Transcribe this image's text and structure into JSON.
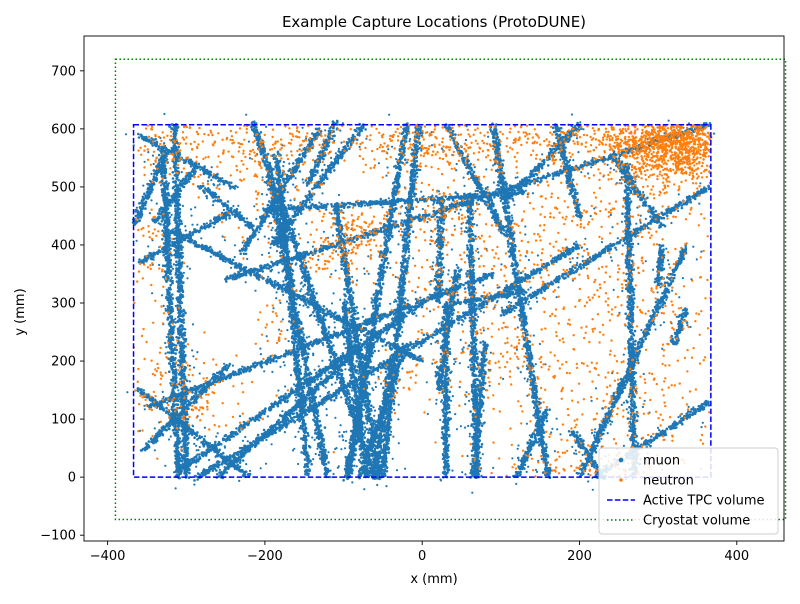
{
  "chart_data": {
    "type": "scatter",
    "title": "Example Capture Locations (ProtoDUNE)",
    "xlabel": "x (mm)",
    "ylabel": "y (mm)",
    "xlim": [
      -430,
      460
    ],
    "ylim": [
      -110,
      760
    ],
    "xticks": [
      -400,
      -200,
      0,
      200,
      400
    ],
    "xtick_labels": [
      "−400",
      "−200",
      "0",
      "200",
      "400"
    ],
    "yticks": [
      -100,
      0,
      100,
      200,
      300,
      400,
      500,
      600,
      700
    ],
    "ytick_labels": [
      "−100",
      "0",
      "100",
      "200",
      "300",
      "400",
      "500",
      "600",
      "700"
    ],
    "grid": false,
    "legend_position": "lower-right",
    "colors": {
      "muon": "#1f77b4",
      "neutron": "#ff7f0e",
      "tpc": "#0000ff",
      "cryostat": "#008000"
    },
    "series": [
      {
        "name": "muon",
        "kind": "scatter",
        "color": "#1f77b4",
        "tracks": [
          [
            [
              -315,
              607
            ],
            [
              -300,
              0
            ]
          ],
          [
            [
              -330,
              565
            ],
            [
              -310,
              0
            ]
          ],
          [
            [
              -360,
              150
            ],
            [
              -220,
              0
            ]
          ],
          [
            [
              -355,
              45
            ],
            [
              -245,
              195
            ]
          ],
          [
            [
              -360,
              370
            ],
            [
              -245,
              455
            ]
          ],
          [
            [
              -215,
              430
            ],
            [
              -280,
              500
            ]
          ],
          [
            [
              -185,
              560
            ],
            [
              -145,
              5
            ]
          ],
          [
            [
              -195,
              520
            ],
            [
              -120,
              0
            ]
          ],
          [
            [
              -215,
              610
            ],
            [
              -60,
              0
            ]
          ],
          [
            [
              -230,
              385
            ],
            [
              -130,
              600
            ]
          ],
          [
            [
              -75,
              607
            ],
            [
              -190,
              400
            ]
          ],
          [
            [
              -110,
              610
            ],
            [
              -145,
              505
            ]
          ],
          [
            [
              -240,
              500
            ],
            [
              -360,
              590
            ]
          ],
          [
            [
              -95,
              0
            ],
            [
              -20,
              607
            ]
          ],
          [
            [
              -55,
              0
            ],
            [
              -110,
              470
            ]
          ],
          [
            [
              -5,
              607
            ],
            [
              -50,
              0
            ]
          ],
          [
            [
              25,
              480
            ],
            [
              20,
              300
            ]
          ],
          [
            [
              30,
              0
            ],
            [
              30,
              300
            ]
          ],
          [
            [
              70,
              0
            ],
            [
              60,
              480
            ]
          ],
          [
            [
              30,
              607
            ],
            [
              105,
              420
            ]
          ],
          [
            [
              110,
              480
            ],
            [
              200,
              607
            ]
          ],
          [
            [
              160,
              0
            ],
            [
              90,
              607
            ]
          ],
          [
            [
              170,
              607
            ],
            [
              200,
              450
            ]
          ],
          [
            [
              -365,
              435
            ],
            [
              -330,
              550
            ]
          ],
          [
            [
              260,
              540
            ],
            [
              270,
              0
            ]
          ],
          [
            [
              200,
              0
            ],
            [
              335,
              395
            ]
          ],
          [
            [
              245,
              550
            ],
            [
              305,
              430
            ]
          ],
          [
            [
              300,
              330
            ],
            [
              305,
              400
            ]
          ],
          [
            [
              -340,
              440
            ],
            [
              -290,
              530
            ]
          ],
          [
            [
              -260,
              0
            ],
            [
              -80,
              220
            ]
          ],
          [
            [
              -310,
              10
            ],
            [
              0,
              300
            ]
          ],
          [
            [
              -350,
              120
            ],
            [
              90,
              350
            ]
          ],
          [
            [
              40,
              300
            ],
            [
              130,
              320
            ]
          ],
          [
            [
              -285,
              0
            ],
            [
              200,
              400
            ]
          ],
          [
            [
              -250,
              340
            ],
            [
              365,
              607
            ]
          ],
          [
            [
              -200,
              460
            ],
            [
              130,
              490
            ]
          ],
          [
            [
              -320,
              425
            ],
            [
              0,
              200
            ]
          ],
          [
            [
              220,
              0
            ],
            [
              365,
              130
            ]
          ],
          [
            [
              100,
              280
            ],
            [
              365,
              500
            ]
          ],
          [
            [
              -20,
              230
            ],
            [
              -80,
              0
            ]
          ],
          [
            [
              -100,
              300
            ],
            [
              -70,
              0
            ]
          ],
          [
            [
              -65,
              230
            ],
            [
              -95,
              0
            ]
          ],
          [
            [
              -40,
              200
            ],
            [
              -60,
              0
            ]
          ],
          [
            [
              45,
              360
            ],
            [
              20,
              150
            ]
          ],
          [
            [
              80,
              230
            ],
            [
              65,
              0
            ]
          ],
          [
            [
              120,
              0
            ],
            [
              160,
              120
            ]
          ],
          [
            [
              190,
              80
            ],
            [
              230,
              0
            ]
          ],
          [
            [
              320,
              230
            ],
            [
              335,
              290
            ]
          ]
        ]
      },
      {
        "name": "neutron",
        "kind": "scatter",
        "color": "#ff7f0e",
        "clusters": [
          [
            320,
            570,
            35,
            35,
            900
          ],
          [
            290,
            575,
            45,
            25,
            300
          ],
          [
            180,
            580,
            90,
            25,
            260
          ],
          [
            30,
            575,
            60,
            25,
            200
          ],
          [
            -150,
            580,
            70,
            25,
            150
          ],
          [
            -320,
            570,
            30,
            30,
            110
          ],
          [
            -210,
            520,
            40,
            60,
            140
          ],
          [
            -80,
            420,
            25,
            25,
            130
          ],
          [
            20,
            460,
            30,
            30,
            90
          ],
          [
            -290,
            140,
            40,
            40,
            110
          ],
          [
            -340,
            200,
            20,
            80,
            60
          ],
          [
            -120,
            380,
            20,
            20,
            50
          ],
          [
            230,
            450,
            80,
            60,
            220
          ],
          [
            270,
            300,
            90,
            60,
            180
          ],
          [
            160,
            250,
            120,
            80,
            180
          ],
          [
            200,
            100,
            100,
            60,
            160
          ],
          [
            230,
            20,
            60,
            20,
            90
          ],
          [
            90,
            220,
            40,
            40,
            60
          ],
          [
            -350,
            400,
            15,
            40,
            40
          ],
          [
            -180,
            250,
            15,
            40,
            30
          ],
          [
            30,
            330,
            30,
            30,
            40
          ],
          [
            -10,
            180,
            20,
            30,
            30
          ],
          [
            300,
            150,
            60,
            60,
            80
          ],
          [
            100,
            400,
            40,
            40,
            60
          ]
        ]
      },
      {
        "name": "Active TPC volume",
        "kind": "rect",
        "style": "dashed",
        "color": "#0000ff",
        "x": [
          -367,
          367
        ],
        "y": [
          0,
          607
        ]
      },
      {
        "name": "Cryostat volume",
        "kind": "rect",
        "style": "dotted",
        "color": "#008000",
        "x": [
          -390,
          462
        ],
        "y": [
          -73,
          720
        ]
      }
    ]
  }
}
